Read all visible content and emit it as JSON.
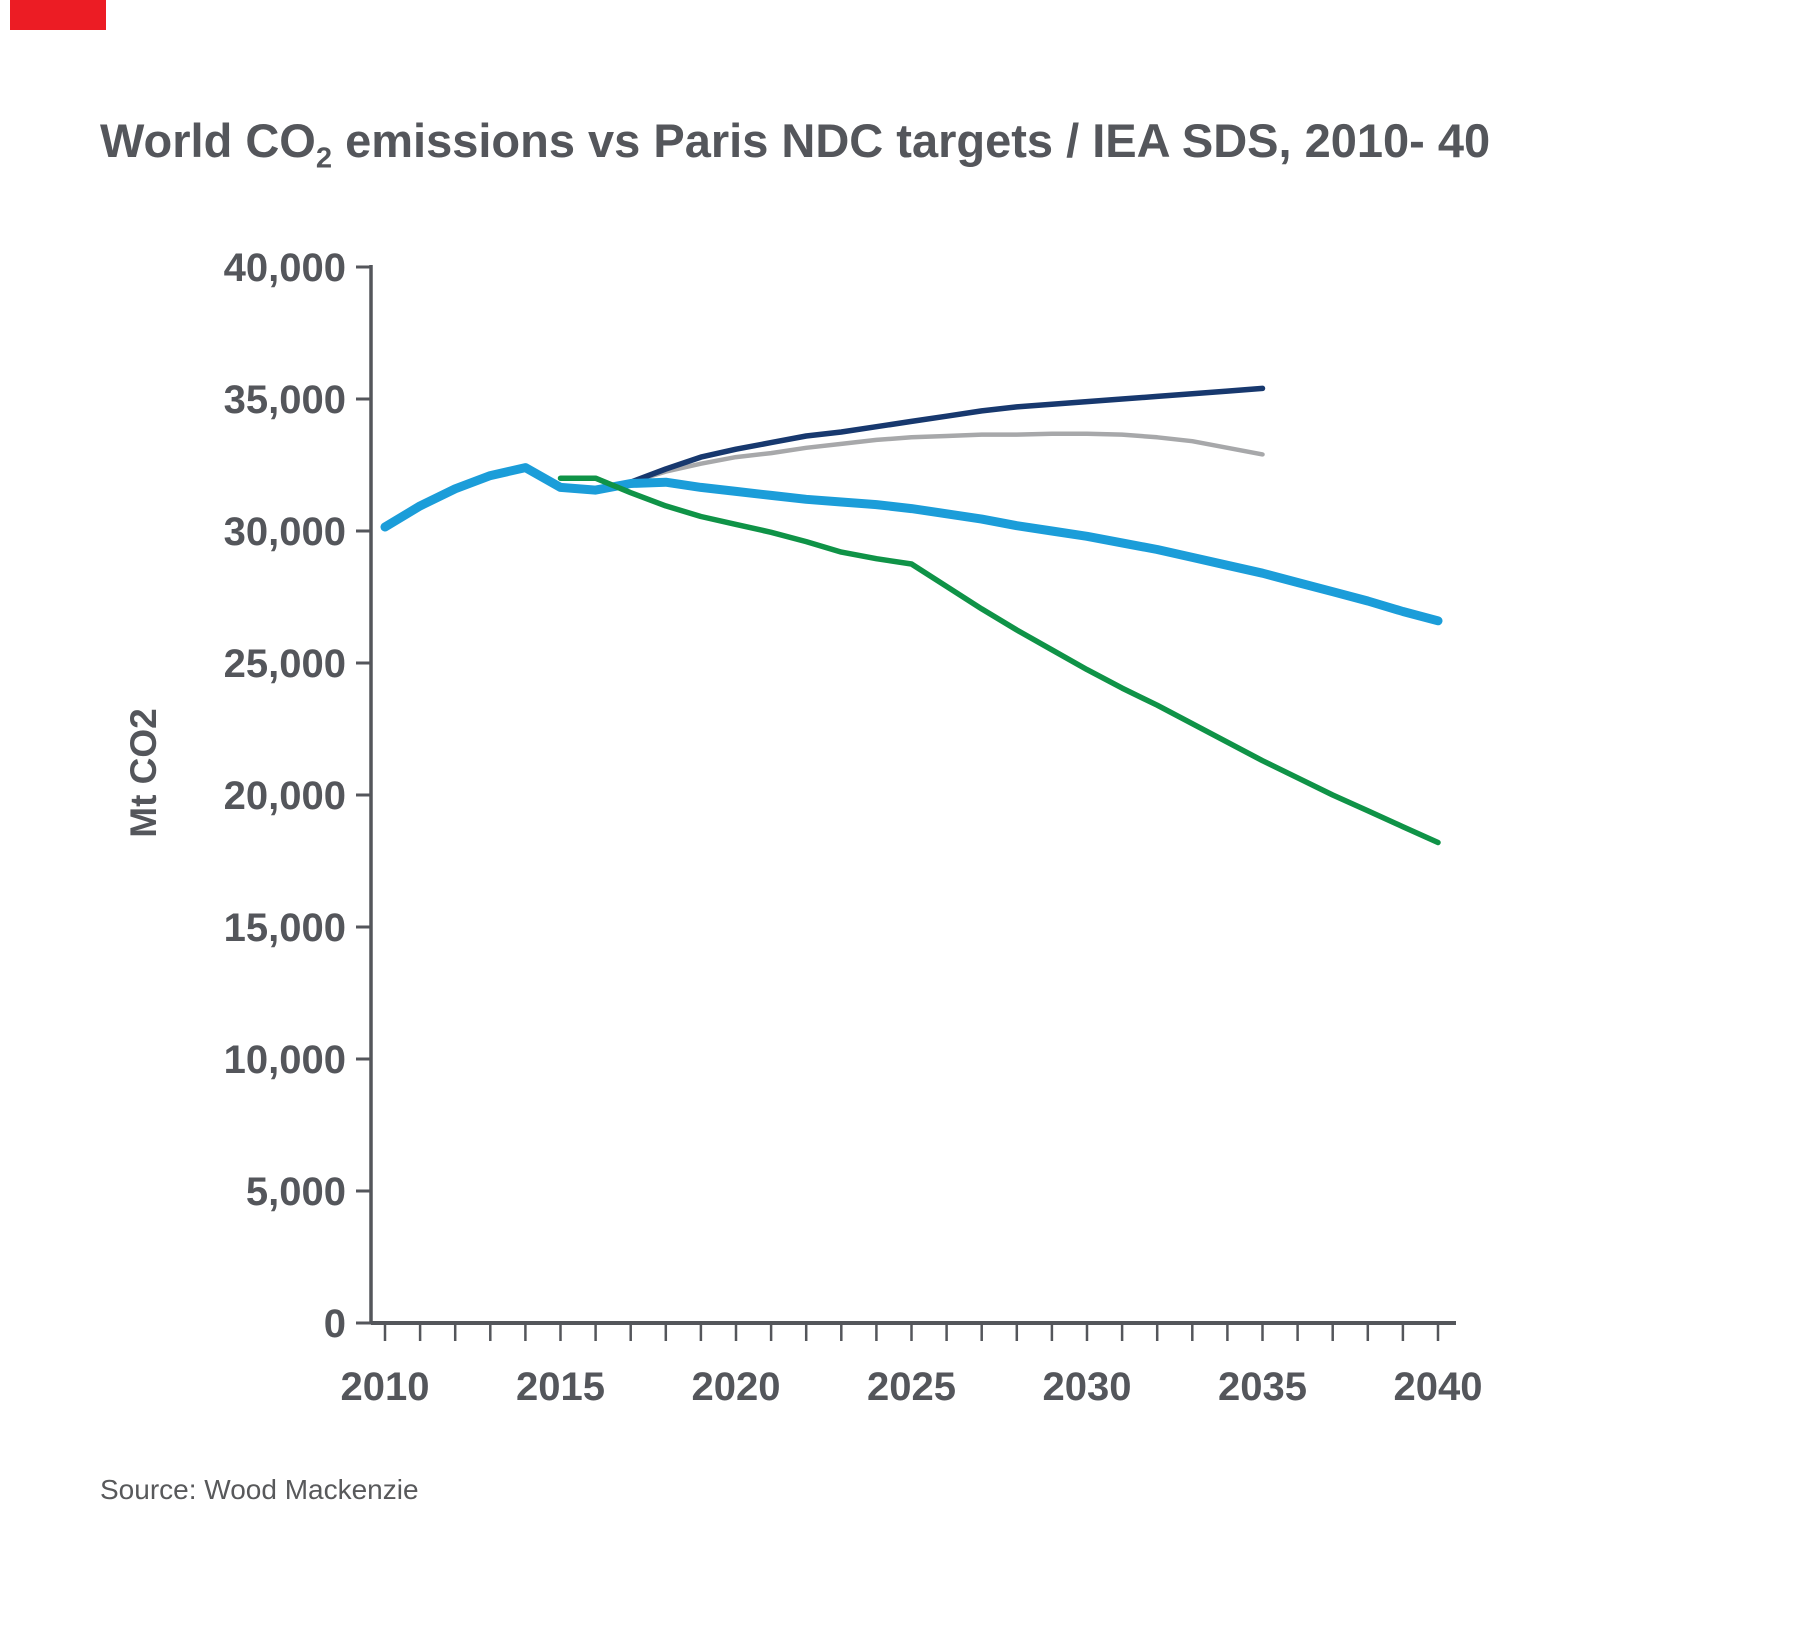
{
  "brand": {
    "accent_color": "#EC1C24"
  },
  "title": {
    "pre": "World CO",
    "sub": "2",
    "post": " emissions vs Paris NDC targets / IEA SDS, 2010- 40"
  },
  "source": "Source: Wood Mackenzie",
  "colors": {
    "text": "#54565B",
    "axis": "#54565B",
    "source_text": "#58595B"
  },
  "chart_data": {
    "type": "line",
    "title": "World CO2 emissions vs Paris NDC targets / IEA SDS, 2010- 40",
    "xlabel": "",
    "ylabel": "Mt CO2",
    "xlim": [
      2010,
      2040
    ],
    "ylim": [
      0,
      40000
    ],
    "grid": false,
    "legend": "none",
    "x_tick_values": [
      2010,
      2015,
      2020,
      2025,
      2030,
      2035,
      2040
    ],
    "x_tick_labels": [
      "2010",
      "2015",
      "2020",
      "2025",
      "2030",
      "2035",
      "2040"
    ],
    "x_minor_tick_step": 1,
    "y_tick_values": [
      0,
      5000,
      10000,
      15000,
      20000,
      25000,
      30000,
      35000,
      40000
    ],
    "y_tick_labels": [
      "0",
      "5,000",
      "10,000",
      "15,000",
      "20,000",
      "25,000",
      "30,000",
      "35,000",
      "40,000"
    ],
    "series": [
      {
        "name": "gray-line",
        "color": "#A7A8AA",
        "width": 4.5,
        "points": [
          [
            2017,
            31850
          ],
          [
            2018,
            32250
          ],
          [
            2019,
            32550
          ],
          [
            2020,
            32800
          ],
          [
            2021,
            32950
          ],
          [
            2022,
            33150
          ],
          [
            2023,
            33300
          ],
          [
            2024,
            33450
          ],
          [
            2025,
            33550
          ],
          [
            2026,
            33600
          ],
          [
            2027,
            33650
          ],
          [
            2028,
            33650
          ],
          [
            2029,
            33680
          ],
          [
            2030,
            33680
          ],
          [
            2031,
            33650
          ],
          [
            2032,
            33550
          ],
          [
            2033,
            33400
          ],
          [
            2034,
            33150
          ],
          [
            2035,
            32900
          ]
        ]
      },
      {
        "name": "dark-navy-line",
        "color": "#17386E",
        "width": 5.5,
        "points": [
          [
            2017,
            31850
          ],
          [
            2018,
            32350
          ],
          [
            2019,
            32800
          ],
          [
            2020,
            33100
          ],
          [
            2021,
            33350
          ],
          [
            2022,
            33600
          ],
          [
            2023,
            33750
          ],
          [
            2024,
            33950
          ],
          [
            2025,
            34150
          ],
          [
            2026,
            34350
          ],
          [
            2027,
            34550
          ],
          [
            2028,
            34700
          ],
          [
            2029,
            34800
          ],
          [
            2030,
            34900
          ],
          [
            2031,
            35000
          ],
          [
            2032,
            35100
          ],
          [
            2033,
            35200
          ],
          [
            2034,
            35300
          ],
          [
            2035,
            35400
          ]
        ]
      },
      {
        "name": "light-blue-thick-line",
        "color": "#1B9DD9",
        "width": 9,
        "points": [
          [
            2010,
            30150
          ],
          [
            2011,
            30950
          ],
          [
            2012,
            31600
          ],
          [
            2013,
            32100
          ],
          [
            2014,
            32400
          ],
          [
            2015,
            31650
          ],
          [
            2016,
            31550
          ],
          [
            2017,
            31800
          ],
          [
            2018,
            31850
          ],
          [
            2019,
            31650
          ],
          [
            2020,
            31500
          ],
          [
            2021,
            31350
          ],
          [
            2022,
            31200
          ],
          [
            2023,
            31100
          ],
          [
            2024,
            31000
          ],
          [
            2025,
            30850
          ],
          [
            2026,
            30650
          ],
          [
            2027,
            30450
          ],
          [
            2028,
            30200
          ],
          [
            2029,
            30000
          ],
          [
            2030,
            29800
          ],
          [
            2031,
            29550
          ],
          [
            2032,
            29300
          ],
          [
            2033,
            29000
          ],
          [
            2034,
            28700
          ],
          [
            2035,
            28400
          ],
          [
            2036,
            28050
          ],
          [
            2037,
            27700
          ],
          [
            2038,
            27350
          ],
          [
            2039,
            26950
          ],
          [
            2040,
            26600
          ]
        ]
      },
      {
        "name": "green-line",
        "color": "#0F9347",
        "width": 5.5,
        "points": [
          [
            2015,
            32000
          ],
          [
            2016,
            32000
          ],
          [
            2017,
            31450
          ],
          [
            2018,
            30950
          ],
          [
            2019,
            30550
          ],
          [
            2020,
            30250
          ],
          [
            2021,
            29950
          ],
          [
            2022,
            29600
          ],
          [
            2023,
            29200
          ],
          [
            2024,
            28950
          ],
          [
            2025,
            28750
          ],
          [
            2026,
            27900
          ],
          [
            2027,
            27050
          ],
          [
            2028,
            26250
          ],
          [
            2029,
            25500
          ],
          [
            2030,
            24750
          ],
          [
            2031,
            24050
          ],
          [
            2032,
            23400
          ],
          [
            2033,
            22700
          ],
          [
            2034,
            22000
          ],
          [
            2035,
            21300
          ],
          [
            2036,
            20650
          ],
          [
            2037,
            20000
          ],
          [
            2038,
            19400
          ],
          [
            2039,
            18800
          ],
          [
            2040,
            18200
          ]
        ]
      }
    ]
  }
}
